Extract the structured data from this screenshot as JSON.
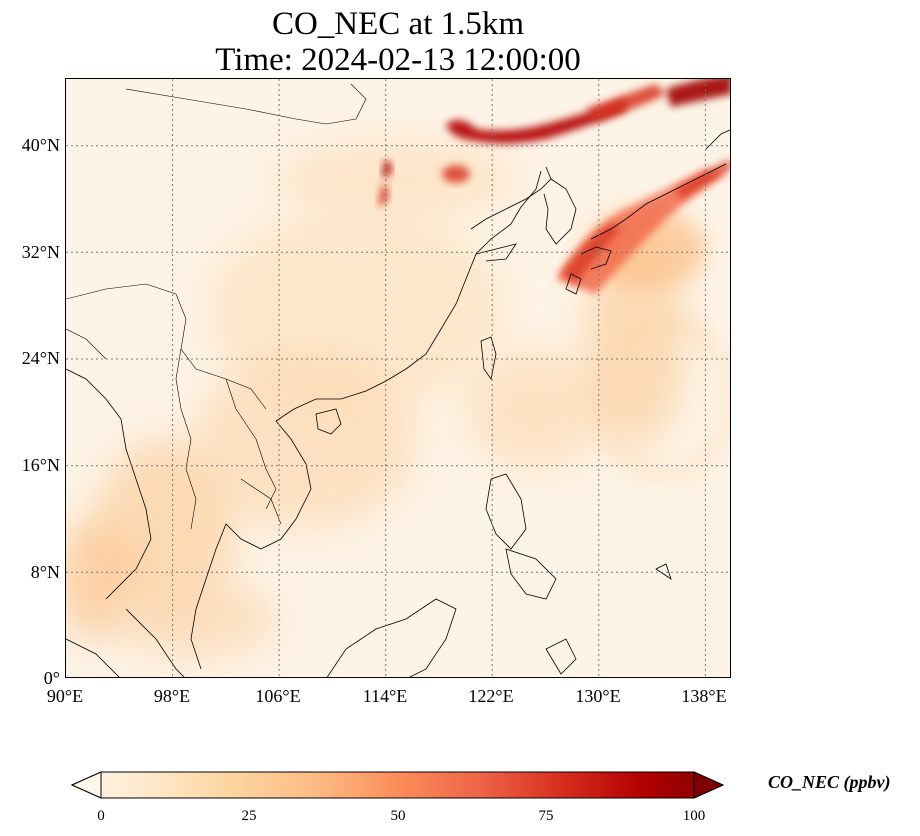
{
  "title": {
    "line1": "CO_NEC at 1.5km",
    "line2": "Time: 2024-02-13 12:00:00"
  },
  "map": {
    "extent": {
      "lon": [
        90,
        140
      ],
      "lat": [
        0,
        45
      ]
    },
    "gridlines": "dotted",
    "colormap": "OrRd",
    "lon_ticks": [
      "90°E",
      "98°E",
      "106°E",
      "114°E",
      "122°E",
      "130°E",
      "138°E"
    ],
    "lat_ticks": [
      "0°",
      "8°N",
      "16°N",
      "24°N",
      "32°N",
      "40°N"
    ]
  },
  "colorbar": {
    "label": "CO_NEC (ppbv)",
    "ticks": [
      "0",
      "25",
      "50",
      "75",
      "100"
    ],
    "range": [
      0,
      100
    ],
    "extend": "both",
    "colors": [
      "#fff7ec",
      "#fee8c8",
      "#fdd49e",
      "#fdbb84",
      "#fc8d59",
      "#ef6548",
      "#d7301f",
      "#b30000",
      "#7f0000"
    ]
  }
}
